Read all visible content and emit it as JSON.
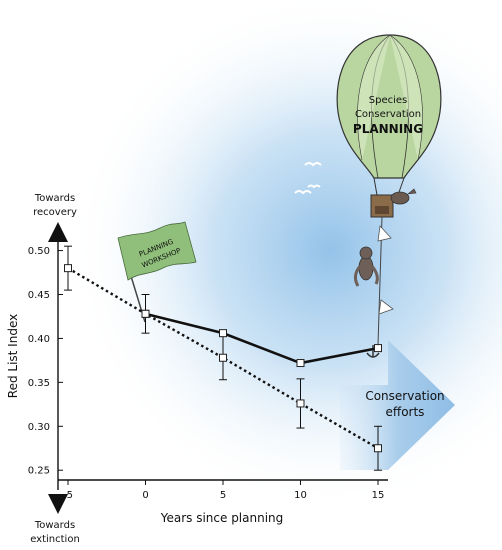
{
  "chart_data": {
    "type": "line",
    "ylabel": "Red List Index",
    "xlabel": "Years since planning",
    "x": [
      -5,
      0,
      5,
      10,
      15
    ],
    "x_tick_labels": [
      "-5",
      "0",
      "5",
      "10",
      "15"
    ],
    "y_ticks": [
      0.25,
      0.3,
      0.35,
      0.4,
      0.45,
      0.5
    ],
    "y_tick_labels": [
      "0.25",
      "0.30",
      "0.35",
      "0.40",
      "0.45",
      "0.50"
    ],
    "xlim": [
      -5,
      15
    ],
    "ylim": [
      0.24,
      0.52
    ],
    "grid": false,
    "series": [
      {
        "style": "solid",
        "values": [
          null,
          0.428,
          0.406,
          0.372,
          0.389
        ],
        "errors": [
          null,
          null,
          null,
          null,
          null
        ]
      },
      {
        "style": "dotted",
        "values": [
          0.48,
          0.428,
          0.378,
          0.326,
          0.275
        ],
        "errors": [
          0.025,
          0.022,
          0.025,
          0.028,
          0.025
        ]
      }
    ],
    "y_axis_top_label": [
      "Towards",
      "recovery"
    ],
    "y_axis_bottom_label": [
      "Towards",
      "extinction"
    ],
    "flag_text": [
      "PLANNING",
      "WORKSHOP"
    ],
    "balloon_text": [
      "Species",
      "Conservation",
      "PLANNING"
    ],
    "arrow_text": [
      "Conservation",
      "efforts"
    ]
  },
  "colors": {
    "balloon_green": "#b9d6a0",
    "balloon_stripe": "#dcecc8",
    "flag_green": "#8fbf7a",
    "sky_blue": "#9ec7ea",
    "arrow_blue": "#a9cdeb",
    "line": "#111111"
  }
}
